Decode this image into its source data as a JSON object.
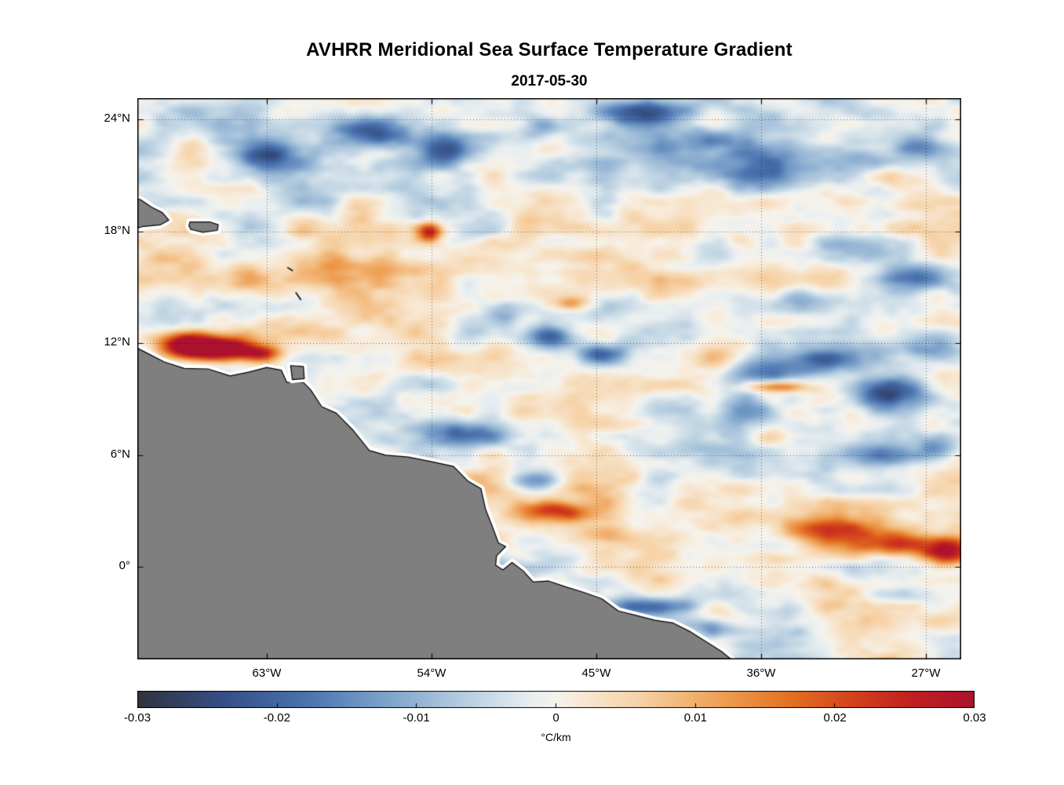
{
  "title": "AVHRR Meridional Sea Surface Temperature Gradient",
  "subtitle": "2017-05-30",
  "chart_data": {
    "type": "heatmap",
    "title": "AVHRR Meridional Sea Surface Temperature Gradient",
    "subtitle": "2017-05-30",
    "units": "°C/km",
    "grid": "dotted",
    "lon_axis": {
      "left_w": 70.07,
      "right_w": 25.07,
      "ticks_w": [
        63,
        54,
        45,
        36,
        27
      ],
      "tick_labels": [
        "63°W",
        "54°W",
        "45°W",
        "36°W",
        "27°W"
      ]
    },
    "lat_axis": {
      "top": 25.14,
      "bottom": -4.95,
      "ticks": [
        24,
        18,
        12,
        6,
        0
      ],
      "tick_labels": [
        "24°N",
        "18°N",
        "12°N",
        "6°N",
        "0°"
      ]
    },
    "colorbar": {
      "min": -0.03,
      "max": 0.03,
      "orientation": "horizontal",
      "ticks": [
        -0.03,
        -0.02,
        -0.01,
        0,
        0.01,
        0.02,
        0.03
      ],
      "tick_labels": [
        "-0.03",
        "-0.02",
        "-0.01",
        "0",
        "0.01",
        "0.02",
        "0.03"
      ],
      "label": "°C/km",
      "colormap_stops": [
        [
          0.0,
          "#30333c"
        ],
        [
          0.1,
          "#354e84"
        ],
        [
          0.2,
          "#4972ae"
        ],
        [
          0.3,
          "#7fa4cc"
        ],
        [
          0.4,
          "#bcd2e2"
        ],
        [
          0.47,
          "#e8eef0"
        ],
        [
          0.5,
          "#f6f3ec"
        ],
        [
          0.53,
          "#f7e9d6"
        ],
        [
          0.6,
          "#f6d2a6"
        ],
        [
          0.7,
          "#ee9e52"
        ],
        [
          0.78,
          "#e27122"
        ],
        [
          0.86,
          "#d23f1c"
        ],
        [
          0.93,
          "#c01e22"
        ],
        [
          1.0,
          "#ab122e"
        ]
      ]
    },
    "land": {
      "color": "#7f7f7f",
      "outline": "#000000",
      "halo": "#ffffff",
      "polygons": {
        "south_america": [
          [
            70.4,
            11.9
          ],
          [
            69.6,
            11.5
          ],
          [
            68.6,
            11.0
          ],
          [
            67.5,
            10.65
          ],
          [
            66.2,
            10.62
          ],
          [
            65.0,
            10.25
          ],
          [
            64.0,
            10.45
          ],
          [
            63.0,
            10.7
          ],
          [
            62.2,
            10.55
          ],
          [
            61.9,
            9.9
          ],
          [
            61.0,
            9.9
          ],
          [
            60.6,
            9.5
          ],
          [
            60.0,
            8.6
          ],
          [
            59.2,
            8.25
          ],
          [
            58.3,
            7.35
          ],
          [
            57.4,
            6.25
          ],
          [
            56.5,
            6.0
          ],
          [
            55.3,
            5.9
          ],
          [
            54.0,
            5.65
          ],
          [
            52.8,
            5.4
          ],
          [
            52.0,
            4.6
          ],
          [
            51.3,
            4.2
          ],
          [
            51.05,
            3.1
          ],
          [
            50.65,
            2.1
          ],
          [
            50.35,
            1.3
          ],
          [
            49.95,
            1.1
          ],
          [
            50.45,
            0.6
          ],
          [
            50.5,
            0.1
          ],
          [
            50.1,
            -0.15
          ],
          [
            49.6,
            0.25
          ],
          [
            49.0,
            -0.2
          ],
          [
            48.45,
            -0.8
          ],
          [
            47.6,
            -0.75
          ],
          [
            46.7,
            -1.05
          ],
          [
            45.7,
            -1.35
          ],
          [
            44.7,
            -1.7
          ],
          [
            43.8,
            -2.35
          ],
          [
            42.8,
            -2.6
          ],
          [
            41.8,
            -2.85
          ],
          [
            40.8,
            -3.0
          ],
          [
            39.9,
            -3.45
          ],
          [
            39.0,
            -4.0
          ],
          [
            38.2,
            -4.5
          ],
          [
            37.5,
            -5.05
          ],
          [
            37.1,
            -5.6
          ],
          [
            36.9,
            -6.5
          ],
          [
            72.0,
            -6.5
          ]
        ],
        "hispaniola": [
          [
            70.6,
            19.8
          ],
          [
            69.9,
            19.7
          ],
          [
            69.3,
            19.3
          ],
          [
            68.7,
            19.0
          ],
          [
            68.35,
            18.6
          ],
          [
            68.8,
            18.35
          ],
          [
            69.8,
            18.25
          ],
          [
            70.6,
            18.0
          ]
        ],
        "puerto_rico": [
          [
            67.2,
            18.5
          ],
          [
            66.1,
            18.5
          ],
          [
            65.65,
            18.35
          ],
          [
            65.7,
            18.05
          ],
          [
            66.5,
            17.95
          ],
          [
            67.15,
            18.1
          ],
          [
            67.25,
            18.3
          ]
        ],
        "trinidad": [
          [
            61.7,
            10.8
          ],
          [
            61.0,
            10.75
          ],
          [
            60.95,
            10.1
          ],
          [
            61.6,
            10.05
          ]
        ]
      },
      "island_marks": [
        [
          61.85,
          16.05,
          61.6,
          15.9
        ],
        [
          61.4,
          14.7,
          61.15,
          14.35
        ]
      ]
    },
    "field": {
      "feature_format": "lon_w, lat, sigma_lon_deg, sigma_lat_deg, amplitude_C_per_km",
      "features": [
        [
          67.5,
          12.0,
          1.3,
          0.5,
          0.03
        ],
        [
          65.8,
          11.7,
          1.5,
          0.42,
          0.044
        ],
        [
          63.3,
          11.4,
          0.8,
          0.3,
          0.022
        ],
        [
          54.1,
          17.95,
          0.45,
          0.35,
          0.026
        ],
        [
          46.3,
          14.1,
          0.8,
          0.28,
          0.018
        ],
        [
          62.9,
          21.9,
          1.1,
          0.6,
          -0.018
        ],
        [
          57.4,
          23.2,
          1.4,
          0.55,
          -0.02
        ],
        [
          53.0,
          22.4,
          1.0,
          0.7,
          -0.014
        ],
        [
          48.0,
          23.5,
          0.8,
          0.5,
          -0.012
        ],
        [
          42.6,
          24.4,
          1.6,
          0.6,
          -0.022
        ],
        [
          39.0,
          23.0,
          1.2,
          0.5,
          -0.012
        ],
        [
          36.0,
          21.3,
          1.8,
          0.7,
          -0.013
        ],
        [
          30.3,
          21.8,
          1.4,
          0.5,
          -0.012
        ],
        [
          27.5,
          22.6,
          1.0,
          0.5,
          -0.014
        ],
        [
          47.6,
          12.3,
          1.1,
          0.45,
          -0.02
        ],
        [
          44.7,
          11.4,
          0.9,
          0.35,
          -0.016
        ],
        [
          50.0,
          13.5,
          0.8,
          0.4,
          -0.01
        ],
        [
          31.5,
          16.8,
          1.3,
          0.5,
          -0.012
        ],
        [
          28.0,
          15.5,
          1.2,
          0.5,
          -0.014
        ],
        [
          33.0,
          14.3,
          1.5,
          0.5,
          -0.012
        ],
        [
          35.5,
          10.3,
          1.8,
          0.7,
          -0.018
        ],
        [
          32.0,
          11.2,
          1.6,
          0.6,
          -0.016
        ],
        [
          29.0,
          9.3,
          1.6,
          0.6,
          -0.02
        ],
        [
          36.8,
          8.3,
          1.3,
          0.6,
          -0.016
        ],
        [
          26.5,
          11.8,
          1.0,
          0.5,
          -0.014
        ],
        [
          35.3,
          9.7,
          1.1,
          0.22,
          0.022
        ],
        [
          52.3,
          7.1,
          1.5,
          0.45,
          -0.016
        ],
        [
          48.7,
          4.6,
          0.9,
          0.35,
          -0.013
        ],
        [
          47.3,
          3.0,
          1.2,
          0.35,
          0.016
        ],
        [
          44.5,
          1.8,
          1.0,
          0.3,
          0.01
        ],
        [
          32.5,
          2.0,
          2.2,
          0.55,
          0.016
        ],
        [
          28.8,
          1.2,
          1.5,
          0.5,
          0.022
        ],
        [
          25.8,
          0.9,
          1.0,
          0.55,
          0.032
        ],
        [
          29.0,
          5.9,
          1.6,
          0.4,
          -0.015
        ],
        [
          26.3,
          6.5,
          0.9,
          0.5,
          -0.012
        ],
        [
          42.3,
          -2.1,
          1.8,
          0.35,
          -0.018
        ],
        [
          38.8,
          -3.2,
          1.2,
          0.35,
          -0.014
        ],
        [
          40.0,
          22.5,
          6.0,
          2.0,
          -0.006
        ],
        [
          60.0,
          22.0,
          4.0,
          2.0,
          -0.005
        ],
        [
          60.0,
          15.5,
          5.0,
          1.5,
          0.005
        ],
        [
          44.0,
          3.0,
          5.0,
          1.5,
          0.005
        ],
        [
          27.5,
          19.5,
          1.5,
          0.6,
          0.007
        ],
        [
          59.0,
          16.2,
          1.5,
          0.5,
          0.008
        ],
        [
          68.5,
          16.5,
          1.2,
          0.6,
          0.008
        ]
      ]
    }
  }
}
